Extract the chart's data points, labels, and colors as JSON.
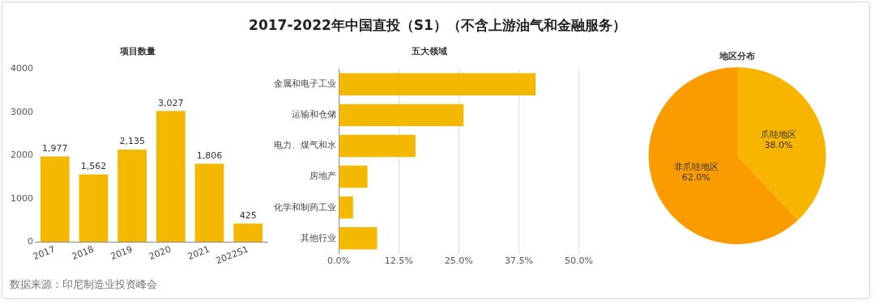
{
  "chart_data": [
    {
      "type": "other",
      "title": "2017-2022年中国直投（S1）（不含上游油气和金融服务）",
      "annotations": [
        "数据来源：印尼制造业投资峰会"
      ]
    },
    {
      "type": "bar",
      "title": "项目数量",
      "categories": [
        "2017",
        "2018",
        "2019",
        "2020",
        "2021",
        "2022S1"
      ],
      "values": [
        1977,
        1562,
        2135,
        3027,
        1806,
        425
      ],
      "value_labels": [
        "1,977",
        "1,562",
        "2,135",
        "3,027",
        "1,806",
        "425"
      ],
      "color": "#f5b800",
      "ylim": [
        0,
        4000
      ],
      "yticks": [
        0,
        1000,
        2000,
        3000,
        4000
      ],
      "grid": false
    },
    {
      "type": "bar",
      "orientation": "horizontal",
      "title": "五大领域",
      "categories": [
        "金属和电子工业",
        "运输和仓储",
        "电力、煤气和水",
        "房地产",
        "化学和制药工业",
        "其他行业"
      ],
      "values": [
        41,
        26,
        16,
        6,
        3,
        8
      ],
      "color": "#f5b800",
      "xlim": [
        0,
        50
      ],
      "xticks": [
        {
          "value": 0,
          "label": "0.0%"
        },
        {
          "value": 12.5,
          "label": "12.5%"
        },
        {
          "value": 25,
          "label": "25.0%"
        },
        {
          "value": 37.5,
          "label": "37.5%"
        },
        {
          "value": 50,
          "label": "50.0%"
        }
      ],
      "grid": "x"
    },
    {
      "type": "pie",
      "title": "地区分布",
      "categories": [
        "爪哇地区",
        "非爪哇地区"
      ],
      "values": [
        38,
        62
      ],
      "value_labels": [
        "38.0%",
        "62.0%"
      ],
      "colors": [
        "#f7b500",
        "#fa9c00"
      ]
    }
  ]
}
